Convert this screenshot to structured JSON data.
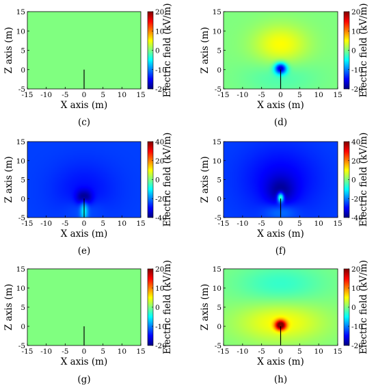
{
  "chart_data": [
    {
      "type": "heatmap",
      "panel_label": "(c)",
      "xlabel": "X  axis  (m)",
      "ylabel": "Z  axis  (m)",
      "colorbar_label": "Electric field (kV/m)",
      "xlim": [
        -15,
        15
      ],
      "ylim": [
        -5,
        15
      ],
      "xticks": [
        "-15",
        "-10",
        "-5",
        "0",
        "5",
        "10",
        "15"
      ],
      "yticks": [
        "15",
        "10",
        "5",
        "0",
        "-5"
      ],
      "clim": [
        -20,
        20
      ],
      "cticks": [
        "20",
        "10",
        "0",
        "-10",
        "-20"
      ],
      "rod": {
        "x": 0,
        "z_bottom": -5,
        "z_top": 0
      },
      "field": {
        "background": 0,
        "sources": []
      }
    },
    {
      "type": "heatmap",
      "panel_label": "(d)",
      "xlabel": "X  axis  (m)",
      "ylabel": "Z  axis  (m)",
      "colorbar_label": "Electric field (kV/m)",
      "xlim": [
        -15,
        15
      ],
      "ylim": [
        -5,
        15
      ],
      "xticks": [
        "-15",
        "-10",
        "-5",
        "0",
        "5",
        "10",
        "15"
      ],
      "yticks": [
        "15",
        "10",
        "5",
        "0",
        "-5"
      ],
      "clim": [
        -20,
        20
      ],
      "cticks": [
        "20",
        "10",
        "0",
        "-10",
        "-20"
      ],
      "rod": {
        "x": 0,
        "z_bottom": -5,
        "z_top": 0
      },
      "field": {
        "background": 0,
        "sources": [
          {
            "x": 0,
            "z": 6.5,
            "amp": 5,
            "sx": 5,
            "sz": 3.5
          },
          {
            "x": 0,
            "z": 0.3,
            "amp": -17,
            "sx": 1.1,
            "sz": 1.0
          },
          {
            "x": 0,
            "z": -2,
            "amp": -2,
            "sx": 7,
            "sz": 3
          }
        ]
      }
    },
    {
      "type": "heatmap",
      "panel_label": "(e)",
      "xlabel": "X  axis  (m)",
      "ylabel": "Z  axis  (m)",
      "colorbar_label": "Electric field (kV/m)",
      "xlim": [
        -15,
        15
      ],
      "ylim": [
        -5,
        15
      ],
      "xticks": [
        "-15",
        "-10",
        "-5",
        "0",
        "5",
        "10",
        "15"
      ],
      "yticks": [
        "15",
        "10",
        "5",
        "0",
        "-5"
      ],
      "clim": [
        -40,
        40
      ],
      "cticks": [
        "40",
        "20",
        "0",
        "-20",
        "-40"
      ],
      "rod": {
        "x": 0,
        "z_bottom": -5,
        "z_top": 0
      },
      "field": {
        "background": -25,
        "sources": [
          {
            "x": 0,
            "z": 2.5,
            "amp": -4,
            "sx": 6,
            "sz": 5
          },
          {
            "x": 0,
            "z": 0.3,
            "amp": -14,
            "sx": 1.3,
            "sz": 1.3
          },
          {
            "x": 0,
            "z": -3,
            "amp": 14,
            "sx": 0.7,
            "sz": 2.2
          },
          {
            "x": 0,
            "z": -3,
            "amp": 3,
            "sx": 3.5,
            "sz": 2
          }
        ]
      }
    },
    {
      "type": "heatmap",
      "panel_label": "(f)",
      "xlabel": "X  axis  (m)",
      "ylabel": "Z  axis  (m)",
      "colorbar_label": "Electric field (kV/m)",
      "xlim": [
        -15,
        15
      ],
      "ylim": [
        -5,
        15
      ],
      "xticks": [
        "-15",
        "-10",
        "-5",
        "0",
        "5",
        "10",
        "15"
      ],
      "yticks": [
        "15",
        "10",
        "5",
        "0",
        "-5"
      ],
      "clim": [
        -40,
        40
      ],
      "cticks": [
        "40",
        "20",
        "0",
        "-20",
        "-40"
      ],
      "rod": {
        "x": 0,
        "z_bottom": -5,
        "z_top": 0
      },
      "field": {
        "background": -25,
        "sources": [
          {
            "x": 0,
            "z": 5,
            "amp": -6,
            "sx": 7,
            "sz": 6
          },
          {
            "x": 0,
            "z": 2,
            "amp": -8,
            "sx": 2.5,
            "sz": 2.5
          },
          {
            "x": 0,
            "z": 0.3,
            "amp": 30,
            "sx": 0.6,
            "sz": 0.9
          },
          {
            "x": 0,
            "z": -3.5,
            "amp": 6,
            "sx": 3,
            "sz": 1.5
          }
        ]
      }
    },
    {
      "type": "heatmap",
      "panel_label": "(g)",
      "xlabel": "X  axis  (m)",
      "ylabel": "Z  axis  (m)",
      "colorbar_label": "Electric field (kV/m)",
      "xlim": [
        -15,
        15
      ],
      "ylim": [
        -5,
        15
      ],
      "xticks": [
        "-15",
        "-10",
        "-5",
        "0",
        "5",
        "10",
        "15"
      ],
      "yticks": [
        "15",
        "10",
        "5",
        "0",
        "-5"
      ],
      "clim": [
        -20,
        20
      ],
      "cticks": [
        "20",
        "10",
        "0",
        "-10",
        "-20"
      ],
      "rod": {
        "x": 0,
        "z_bottom": -5,
        "z_top": 0
      },
      "field": {
        "background": 0,
        "sources": []
      }
    },
    {
      "type": "heatmap",
      "panel_label": "(h)",
      "xlabel": "X  axis  (m)",
      "ylabel": "Z  axis  (m)",
      "colorbar_label": "Electric field (kV/m)",
      "xlim": [
        -15,
        15
      ],
      "ylim": [
        -5,
        15
      ],
      "xticks": [
        "-15",
        "-10",
        "-5",
        "0",
        "5",
        "10",
        "15"
      ],
      "yticks": [
        "15",
        "10",
        "5",
        "0",
        "-5"
      ],
      "clim": [
        -20,
        20
      ],
      "cticks": [
        "20",
        "10",
        "0",
        "-10",
        "-20"
      ],
      "rod": {
        "x": 0,
        "z_bottom": -5,
        "z_top": 0
      },
      "field": {
        "background": 0,
        "sources": [
          {
            "x": 0,
            "z": 0.3,
            "amp": 20,
            "sx": 1.0,
            "sz": 0.9
          },
          {
            "x": 0,
            "z": 1,
            "amp": 5,
            "sx": 8,
            "sz": 3.5
          },
          {
            "x": 0,
            "z": 11,
            "amp": -3,
            "sx": 8,
            "sz": 3.5
          }
        ]
      }
    }
  ]
}
